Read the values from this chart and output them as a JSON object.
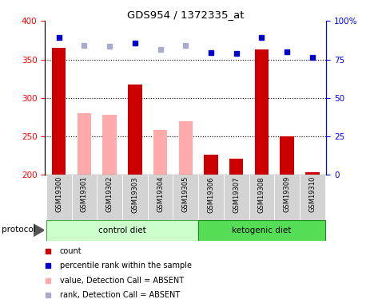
{
  "title": "GDS954 / 1372335_at",
  "samples": [
    "GSM19300",
    "GSM19301",
    "GSM19302",
    "GSM19303",
    "GSM19304",
    "GSM19305",
    "GSM19306",
    "GSM19307",
    "GSM19308",
    "GSM19309",
    "GSM19310"
  ],
  "count_values": [
    365,
    null,
    null,
    317,
    null,
    null,
    226,
    221,
    363,
    250,
    203
  ],
  "absent_value_bars": [
    null,
    280,
    278,
    null,
    258,
    270,
    null,
    null,
    null,
    null,
    null
  ],
  "rank_dots_absent": [
    null,
    368,
    367,
    null,
    363,
    368,
    null,
    null,
    null,
    null,
    null
  ],
  "rank_dots_present": [
    379,
    null,
    null,
    371,
    null,
    null,
    359,
    358,
    378,
    360,
    353
  ],
  "ylim": [
    200,
    400
  ],
  "y2lim": [
    0,
    100
  ],
  "yticks": [
    200,
    250,
    300,
    350,
    400
  ],
  "y2ticks": [
    0,
    25,
    50,
    75,
    100
  ],
  "dotted_lines": [
    350,
    300,
    250
  ],
  "bar_color_present": "#cc0000",
  "bar_color_absent": "#ffaaaa",
  "dot_color_present": "#0000cc",
  "dot_color_absent": "#aaaacc",
  "bg_plot": "#ffffff",
  "bg_label": "#d3d3d3",
  "bg_control": "#ccffcc",
  "bg_ketogenic": "#55dd55",
  "protocol_label": "protocol",
  "control_label": "control diet",
  "ketogenic_label": "ketogenic diet"
}
